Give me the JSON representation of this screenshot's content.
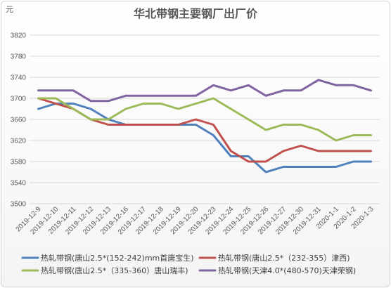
{
  "chart_data": {
    "type": "line",
    "title": "华北带钢主要钢厂出厂价",
    "ylabel": "元",
    "xlabel": "",
    "ylim": [
      3500,
      3820
    ],
    "yticks": [
      3500,
      3540,
      3580,
      3620,
      3660,
      3700,
      3740,
      3780,
      3820
    ],
    "grid": "horizontal",
    "legend": "bottom",
    "categories": [
      "2019-12-9",
      "2019-12-10",
      "2019-12-11",
      "2019-12-12",
      "2019-12-13",
      "2019-12-16",
      "2019-12-17",
      "2019-12-18",
      "2019-12-19",
      "2019-12-20",
      "2019-12-23",
      "2019-12-24",
      "2019-12-25",
      "2019-12-26",
      "2019-12-27",
      "2019-12-30",
      "2019-12-31",
      "2020-1-1",
      "2020-1-2",
      "2020-1-3"
    ],
    "series": [
      {
        "name": "热轧带钢(唐山2.5*(152-242)mm首唐宝生)",
        "color": "#4f81bd",
        "values": [
          3680,
          3690,
          3690,
          3680,
          3660,
          3650,
          3650,
          3650,
          3650,
          3650,
          3630,
          3590,
          3590,
          3560,
          3570,
          3570,
          3570,
          3570,
          3580,
          3580
        ]
      },
      {
        "name": "热轧带钢(唐山2.5*（232-355）津西)",
        "color": "#c0504d",
        "values": [
          3700,
          3690,
          3680,
          3660,
          3650,
          3650,
          3650,
          3650,
          3650,
          3660,
          3650,
          3600,
          3580,
          3580,
          3600,
          3610,
          3600,
          3600,
          3600,
          3600
        ]
      },
      {
        "name": "热轧带钢(唐山2.5*（335-360）唐山瑞丰)",
        "color": "#9bbb59",
        "values": [
          3700,
          3700,
          3680,
          3660,
          3660,
          3680,
          3690,
          3690,
          3680,
          3690,
          3700,
          3680,
          3660,
          3640,
          3650,
          3650,
          3640,
          3620,
          3630,
          3630
        ]
      },
      {
        "name": "热轧带钢(天津4.0*(480-570)天津荣钢)",
        "color": "#8064a2",
        "values": [
          3715,
          3715,
          3715,
          3695,
          3695,
          3705,
          3705,
          3705,
          3705,
          3705,
          3725,
          3715,
          3725,
          3705,
          3715,
          3715,
          3735,
          3725,
          3725,
          3715
        ]
      }
    ]
  }
}
